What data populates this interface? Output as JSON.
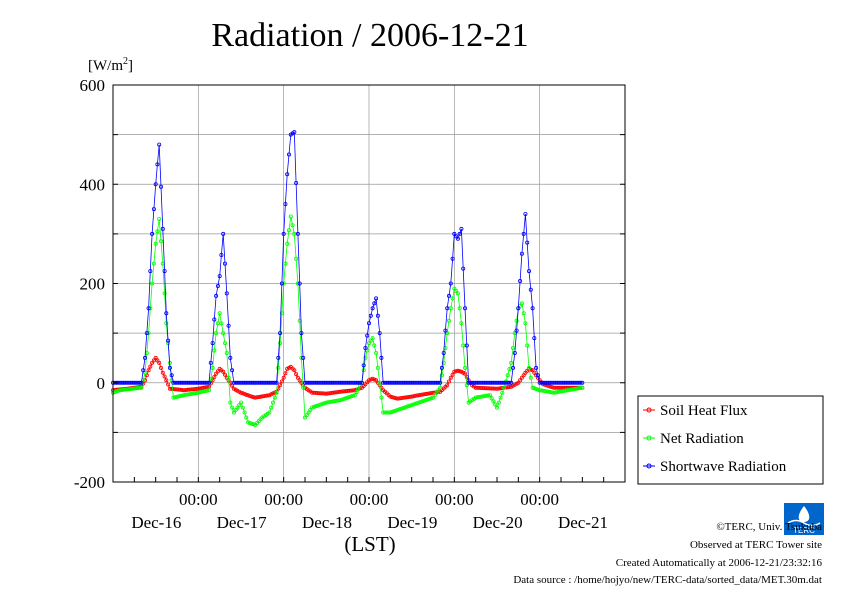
{
  "chart_data": {
    "type": "line",
    "title": "Radiation / 2006-12-21",
    "unit_label": "[W/m",
    "unit_sup": "2",
    "unit_close": "]",
    "xlabel": "(LST)",
    "ylim": [
      -200,
      600
    ],
    "xlim": [
      -12,
      132
    ],
    "y_ticks": [
      {
        "value": 600,
        "label": "600"
      },
      {
        "value": 400,
        "label": "400"
      },
      {
        "value": 200,
        "label": "200"
      },
      {
        "value": 0,
        "label": "0"
      },
      {
        "value": -200,
        "label": "-200"
      }
    ],
    "x_ticks": [
      {
        "value": 12,
        "time": "00:00",
        "date": "Dec-16"
      },
      {
        "value": 36,
        "time": "00:00",
        "date": "Dec-17"
      },
      {
        "value": 60,
        "time": "00:00",
        "date": "Dec-18"
      },
      {
        "value": 84,
        "time": "00:00",
        "date": "Dec-19"
      },
      {
        "value": 108,
        "time": "00:00",
        "date": "Dec-20"
      },
      {
        "value": 132,
        "time": "",
        "date": "Dec-21"
      }
    ],
    "grid": true,
    "legend_position": "lower-right, outside plot",
    "series": [
      {
        "name": "Soil Heat Flux",
        "color": "#ff0000",
        "points": [
          [
            -12,
            -15
          ],
          [
            -8,
            -12
          ],
          [
            -4,
            -8
          ],
          [
            -3,
            5
          ],
          [
            -2,
            25
          ],
          [
            -1,
            40
          ],
          [
            0,
            50
          ],
          [
            1,
            40
          ],
          [
            2,
            20
          ],
          [
            3,
            5
          ],
          [
            4,
            -12
          ],
          [
            8,
            -15
          ],
          [
            12,
            -12
          ],
          [
            15,
            -8
          ],
          [
            16,
            5
          ],
          [
            17,
            18
          ],
          [
            18,
            28
          ],
          [
            19,
            22
          ],
          [
            20,
            10
          ],
          [
            21,
            0
          ],
          [
            22,
            -12
          ],
          [
            24,
            -20
          ],
          [
            27,
            -28
          ],
          [
            28,
            -30
          ],
          [
            32,
            -25
          ],
          [
            34,
            -18
          ],
          [
            35,
            -5
          ],
          [
            36,
            10
          ],
          [
            37,
            28
          ],
          [
            38,
            32
          ],
          [
            39,
            25
          ],
          [
            40,
            10
          ],
          [
            41,
            0
          ],
          [
            42,
            -10
          ],
          [
            44,
            -20
          ],
          [
            48,
            -22
          ],
          [
            52,
            -18
          ],
          [
            56,
            -15
          ],
          [
            58,
            -10
          ],
          [
            59,
            -3
          ],
          [
            60,
            5
          ],
          [
            61,
            8
          ],
          [
            62,
            5
          ],
          [
            63,
            -5
          ],
          [
            64,
            -15
          ],
          [
            66,
            -28
          ],
          [
            68,
            -32
          ],
          [
            72,
            -28
          ],
          [
            74,
            -25
          ],
          [
            80,
            -18
          ],
          [
            82,
            -5
          ],
          [
            83,
            10
          ],
          [
            84,
            22
          ],
          [
            85,
            24
          ],
          [
            86,
            22
          ],
          [
            87,
            18
          ],
          [
            88,
            5
          ],
          [
            89,
            -5
          ],
          [
            90,
            -10
          ],
          [
            96,
            -12
          ],
          [
            100,
            -8
          ],
          [
            102,
            0
          ],
          [
            103,
            10
          ],
          [
            104,
            20
          ],
          [
            105,
            28
          ],
          [
            106,
            25
          ],
          [
            107,
            15
          ],
          [
            108,
            5
          ],
          [
            109,
            -3
          ],
          [
            112,
            -10
          ],
          [
            120,
            -10
          ]
        ]
      },
      {
        "name": "Net Radiation",
        "color": "#00ff00",
        "points": [
          [
            -12,
            -20
          ],
          [
            -10,
            -15
          ],
          [
            -4,
            -10
          ],
          [
            -3,
            20
          ],
          [
            -2,
            100
          ],
          [
            -1,
            200
          ],
          [
            0,
            280
          ],
          [
            1,
            330
          ],
          [
            2,
            240
          ],
          [
            3,
            120
          ],
          [
            4,
            40
          ],
          [
            5,
            -30
          ],
          [
            8,
            -25
          ],
          [
            12,
            -20
          ],
          [
            15,
            -15
          ],
          [
            16,
            30
          ],
          [
            17,
            100
          ],
          [
            18,
            140
          ],
          [
            19,
            100
          ],
          [
            20,
            60
          ],
          [
            21,
            -40
          ],
          [
            22,
            -60
          ],
          [
            24,
            -40
          ],
          [
            26,
            -80
          ],
          [
            28,
            -85
          ],
          [
            30,
            -70
          ],
          [
            32,
            -60
          ],
          [
            34,
            -20
          ],
          [
            35,
            80
          ],
          [
            36,
            200
          ],
          [
            37,
            280
          ],
          [
            38,
            335
          ],
          [
            39,
            300
          ],
          [
            40,
            200
          ],
          [
            41,
            50
          ],
          [
            42,
            -70
          ],
          [
            44,
            -50
          ],
          [
            48,
            -40
          ],
          [
            52,
            -35
          ],
          [
            56,
            -25
          ],
          [
            58,
            0
          ],
          [
            59,
            50
          ],
          [
            60,
            80
          ],
          [
            61,
            90
          ],
          [
            62,
            60
          ],
          [
            63,
            0
          ],
          [
            64,
            -60
          ],
          [
            66,
            -60
          ],
          [
            70,
            -50
          ],
          [
            74,
            -40
          ],
          [
            78,
            -30
          ],
          [
            80,
            -10
          ],
          [
            81,
            40
          ],
          [
            82,
            100
          ],
          [
            83,
            150
          ],
          [
            84,
            190
          ],
          [
            85,
            180
          ],
          [
            86,
            120
          ],
          [
            87,
            30
          ],
          [
            88,
            -40
          ],
          [
            90,
            -30
          ],
          [
            94,
            -25
          ],
          [
            96,
            -50
          ],
          [
            98,
            -10
          ],
          [
            100,
            40
          ],
          [
            101,
            100
          ],
          [
            102,
            150
          ],
          [
            103,
            160
          ],
          [
            104,
            120
          ],
          [
            105,
            30
          ],
          [
            106,
            -10
          ],
          [
            108,
            -15
          ],
          [
            112,
            -20
          ],
          [
            116,
            -15
          ],
          [
            120,
            -10
          ]
        ]
      },
      {
        "name": "Shortwave Radiation",
        "color": "#0000ff",
        "points": [
          [
            -12,
            0
          ],
          [
            -4,
            0
          ],
          [
            -3,
            50
          ],
          [
            -2,
            150
          ],
          [
            -1,
            300
          ],
          [
            0,
            400
          ],
          [
            1,
            480
          ],
          [
            2,
            310
          ],
          [
            3,
            140
          ],
          [
            4,
            30
          ],
          [
            5,
            0
          ],
          [
            15,
            0
          ],
          [
            16,
            80
          ],
          [
            17,
            175
          ],
          [
            18,
            215
          ],
          [
            19,
            300
          ],
          [
            20,
            180
          ],
          [
            21,
            50
          ],
          [
            22,
            0
          ],
          [
            34,
            0
          ],
          [
            35,
            100
          ],
          [
            36,
            300
          ],
          [
            37,
            420
          ],
          [
            38,
            500
          ],
          [
            39,
            505
          ],
          [
            40,
            300
          ],
          [
            41,
            100
          ],
          [
            42,
            0
          ],
          [
            58,
            0
          ],
          [
            59,
            70
          ],
          [
            60,
            120
          ],
          [
            61,
            150
          ],
          [
            62,
            170
          ],
          [
            63,
            100
          ],
          [
            64,
            0
          ],
          [
            80,
            0
          ],
          [
            81,
            60
          ],
          [
            82,
            150
          ],
          [
            83,
            200
          ],
          [
            84,
            300
          ],
          [
            85,
            290
          ],
          [
            86,
            310
          ],
          [
            87,
            150
          ],
          [
            88,
            0
          ],
          [
            100,
            0
          ],
          [
            101,
            60
          ],
          [
            102,
            150
          ],
          [
            103,
            260
          ],
          [
            104,
            340
          ],
          [
            105,
            225
          ],
          [
            106,
            150
          ],
          [
            107,
            30
          ],
          [
            108,
            0
          ],
          [
            120,
            0
          ]
        ]
      }
    ]
  },
  "credits": {
    "copyright": "©TERC, Univ. Tsukuba",
    "site": "Observed at TERC Tower site",
    "created": "Created Automatically at 2006-12-21/23:32:16",
    "source": "Data source : /home/hojyo/new/TERC-data/sorted_data/MET.30m.dat"
  },
  "logo": {
    "text": "TERC",
    "color": "#0066cc"
  }
}
